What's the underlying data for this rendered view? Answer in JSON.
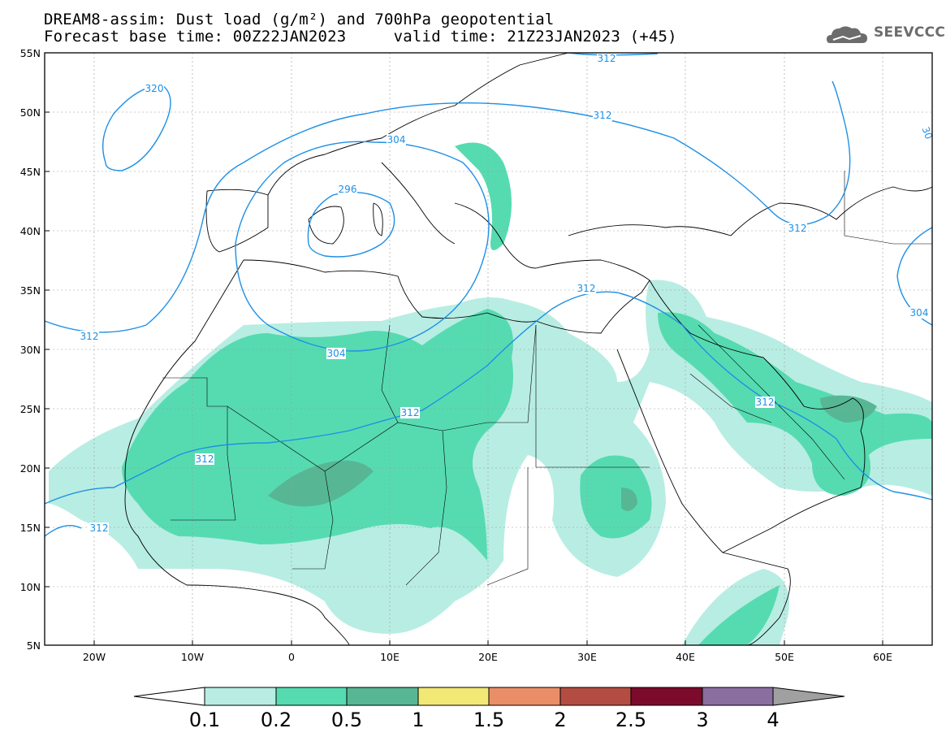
{
  "title_line1": "DREAM8-assim: Dust load (g/m²) and 700hPa geopotential",
  "title_line2": "Forecast base time: 00Z22JAN2023     valid time: 21Z23JAN2023 (+45)",
  "logo_text": "SEEVCCC",
  "logo_icon": "cloud-logo-icon",
  "map": {
    "lon_range": [
      -25,
      65
    ],
    "lat_range": [
      5,
      55
    ],
    "lat_ticks": [
      "55N",
      "50N",
      "45N",
      "40N",
      "35N",
      "30N",
      "25N",
      "20N",
      "15N",
      "10N",
      "5N"
    ],
    "lon_ticks": [
      "20W",
      "10W",
      "0",
      "10E",
      "20E",
      "30E",
      "40E",
      "50E",
      "60E"
    ],
    "contour_labels": [
      "312",
      "320",
      "312",
      "304",
      "296",
      "312",
      "312",
      "304",
      "312",
      "312",
      "312",
      "312",
      "312",
      "304",
      "30"
    ],
    "contour_color": "#1e90e6"
  },
  "colorbar": {
    "colors": [
      "#b8ede3",
      "#56dbb1",
      "#57b795",
      "#f2e876",
      "#ea8e68",
      "#b34d42",
      "#7c0b2b",
      "#8a6ea0",
      "#a0a0a0"
    ],
    "labels": [
      "0.1",
      "0.2",
      "0.5",
      "1",
      "1.5",
      "2",
      "2.5",
      "3",
      "4"
    ]
  }
}
